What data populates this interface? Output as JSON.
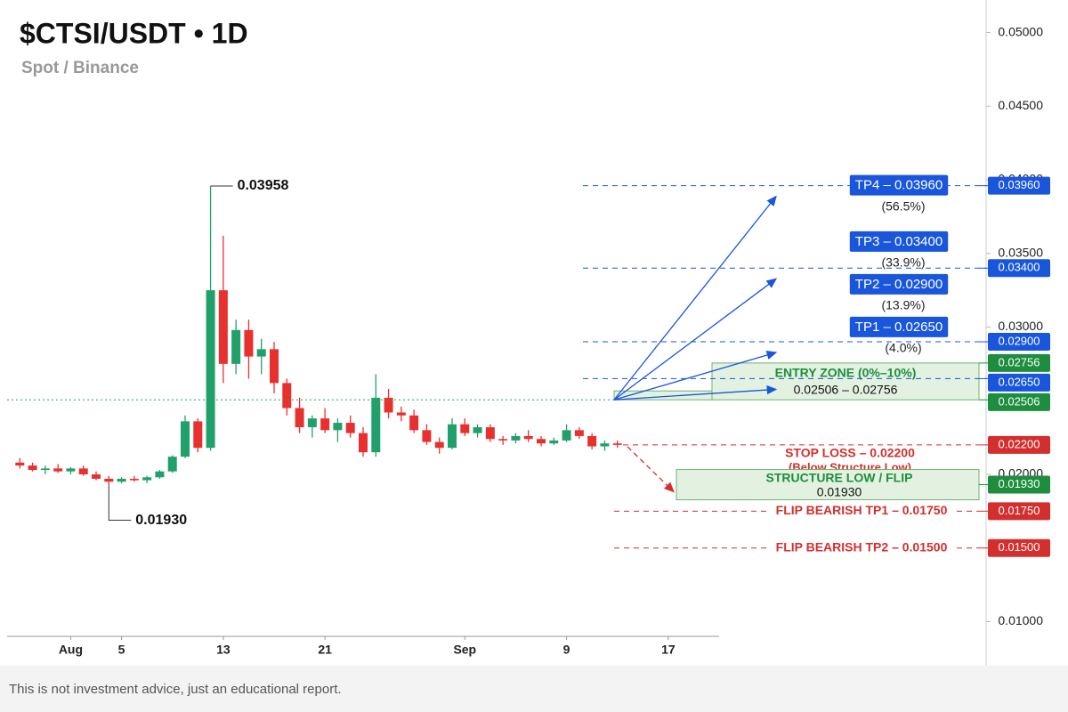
{
  "chart_data": {
    "type": "candlestick",
    "title": "$CTSI/USDT • 1D",
    "subtitle": "Spot / Binance",
    "footnote": "This is not investment advice, just an educational report.",
    "up_color": "#22a06b",
    "down_color": "#e8312f",
    "x": [
      -3,
      -2,
      -1,
      0,
      1,
      2,
      3,
      4,
      5,
      6,
      7,
      8,
      9,
      10,
      11,
      12,
      13,
      14,
      15,
      16,
      17,
      18,
      19,
      20,
      21,
      22,
      23,
      24,
      25,
      26,
      27,
      28,
      29,
      30,
      31,
      32,
      33,
      34,
      35,
      36,
      37,
      38,
      39,
      40,
      41,
      42,
      43,
      44
    ],
    "open": [
      0.0208,
      0.0206,
      0.0203,
      0.0204,
      0.0202,
      0.0204,
      0.02,
      0.0197,
      0.0195,
      0.0197,
      0.0196,
      0.0198,
      0.0202,
      0.0212,
      0.0236,
      0.0218,
      0.0325,
      0.0275,
      0.0298,
      0.028,
      0.0285,
      0.0262,
      0.0245,
      0.0232,
      0.0238,
      0.023,
      0.0235,
      0.0228,
      0.0215,
      0.0252,
      0.0242,
      0.024,
      0.023,
      0.0222,
      0.0218,
      0.0234,
      0.0228,
      0.0232,
      0.0224,
      0.0223,
      0.0226,
      0.0224,
      0.0221,
      0.0223,
      0.023,
      0.0226,
      0.0219,
      0.0221
    ],
    "high": [
      0.0211,
      0.0208,
      0.0206,
      0.0207,
      0.0205,
      0.0206,
      0.0202,
      0.0199,
      0.0198,
      0.0199,
      0.0199,
      0.0203,
      0.0213,
      0.024,
      0.0238,
      0.03958,
      0.0362,
      0.0305,
      0.0305,
      0.0292,
      0.029,
      0.0265,
      0.0252,
      0.024,
      0.0245,
      0.0238,
      0.024,
      0.0232,
      0.0268,
      0.0258,
      0.0246,
      0.0244,
      0.0234,
      0.0225,
      0.0238,
      0.0238,
      0.0234,
      0.0234,
      0.0226,
      0.0228,
      0.023,
      0.0226,
      0.0225,
      0.0234,
      0.0232,
      0.0228,
      0.0223,
      0.0223
    ],
    "low": [
      0.0204,
      0.0202,
      0.02,
      0.0201,
      0.02,
      0.0199,
      0.0196,
      0.0193,
      0.0194,
      0.0195,
      0.0194,
      0.0197,
      0.0201,
      0.0211,
      0.0215,
      0.0216,
      0.0262,
      0.0268,
      0.0265,
      0.0268,
      0.0255,
      0.024,
      0.0228,
      0.0225,
      0.0228,
      0.0222,
      0.0225,
      0.0212,
      0.0212,
      0.0238,
      0.0236,
      0.0228,
      0.022,
      0.0214,
      0.0217,
      0.0226,
      0.0225,
      0.0222,
      0.022,
      0.0221,
      0.0222,
      0.0219,
      0.022,
      0.0222,
      0.0224,
      0.0217,
      0.0216,
      0.0218
    ],
    "close": [
      0.0206,
      0.0203,
      0.0204,
      0.0202,
      0.0204,
      0.02,
      0.0197,
      0.0195,
      0.0197,
      0.0196,
      0.0198,
      0.0202,
      0.0212,
      0.0236,
      0.0218,
      0.0325,
      0.0275,
      0.0298,
      0.028,
      0.0285,
      0.0262,
      0.0245,
      0.0232,
      0.0238,
      0.023,
      0.0235,
      0.0228,
      0.0215,
      0.0252,
      0.0242,
      0.024,
      0.023,
      0.0222,
      0.0218,
      0.0234,
      0.0228,
      0.0232,
      0.0224,
      0.0223,
      0.0226,
      0.0224,
      0.0221,
      0.0223,
      0.023,
      0.0226,
      0.0219,
      0.0221,
      0.022
    ],
    "xlim": [
      -4,
      52
    ],
    "xticks": [
      {
        "value": 1,
        "label": "Aug"
      },
      5,
      13,
      21,
      {
        "value": 32,
        "label": "Sep"
      },
      {
        "value": 40,
        "label": "9"
      },
      {
        "value": 48,
        "label": "17"
      }
    ],
    "ylim": [
      0.009,
      0.051
    ],
    "yticks": [
      {
        "value": 0.05,
        "label": "0.05000"
      },
      {
        "value": 0.045,
        "label": "0.04500"
      },
      {
        "value": 0.04,
        "label": "0.04000"
      },
      {
        "value": 0.035,
        "label": "0.03500"
      },
      {
        "value": 0.03,
        "label": "0.03000"
      },
      {
        "value": 0.02,
        "label": "0.02000"
      },
      {
        "value": 0.01,
        "label": "0.01000"
      }
    ],
    "annotations": [
      {
        "kind": "high",
        "value": 0.03958,
        "label": "0.03958"
      },
      {
        "kind": "low",
        "value": 0.0193,
        "label": "0.01930"
      }
    ],
    "targets": [
      {
        "label": "TP1 – 0.02650",
        "value": 0.0265,
        "tag": "0.02650",
        "note": "(4.0%)"
      },
      {
        "label": "TP2 – 0.02900",
        "value": 0.029,
        "tag": "0.02900",
        "note": "(13.9%)"
      },
      {
        "label": "TP3 – 0.03400",
        "value": 0.034,
        "tag": "0.03400",
        "note": "(33.9%)"
      },
      {
        "label": "TP4 – 0.03960",
        "value": 0.0396,
        "tag": "0.03960",
        "note": "(56.5%)"
      }
    ],
    "target_color": "#1a56db",
    "entry_zone": {
      "label": "ENTRY ZONE (0%–10%)",
      "range_label": "0.02506 – 0.02756",
      "low": {
        "value": 0.02506,
        "label": "0.02506"
      },
      "high": {
        "value": 0.02756,
        "label": "0.02756"
      }
    },
    "stop_loss": {
      "label": "STOP LOSS – 0.02200",
      "note": "(Below Structure Low)",
      "value": 0.022,
      "tag": "0.02200"
    },
    "structure": {
      "label": "STRUCTURE LOW / FLIP",
      "value": 0.0193,
      "value_label": "0.01930"
    },
    "flip_targets": [
      {
        "label": "FLIP BEARISH TP1 – 0.01750",
        "value": 0.0175,
        "tag": "0.01750"
      },
      {
        "label": "FLIP BEARISH TP2 – 0.01500",
        "value": 0.015,
        "tag": "0.01500"
      }
    ],
    "green_color": "#1e8e3e",
    "red_color": "#d32f2f"
  }
}
